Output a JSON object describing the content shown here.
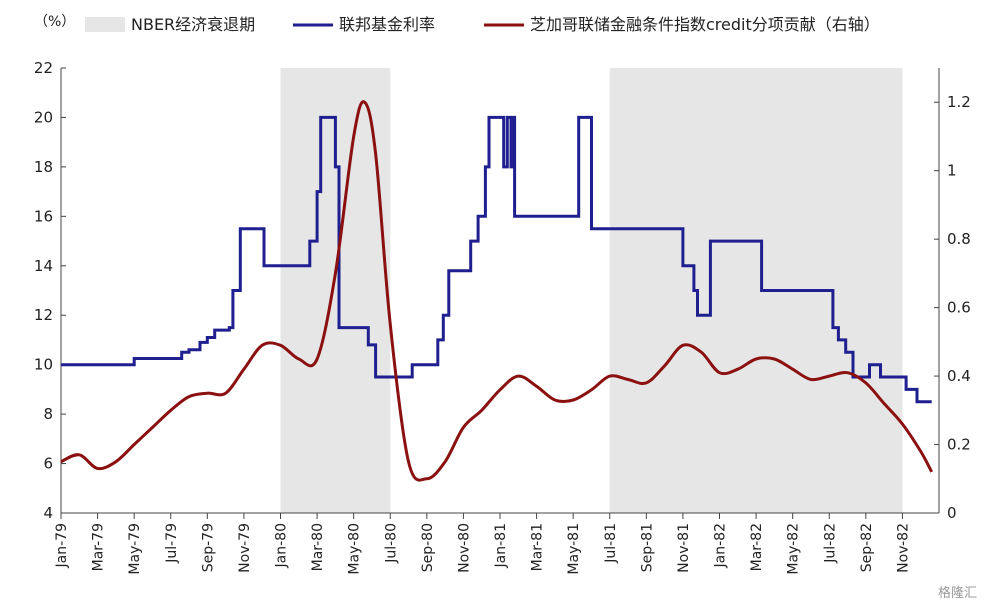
{
  "chart_data": {
    "type": "line",
    "unit_label": "（%）",
    "legend": [
      {
        "key": "recession",
        "label": "NBER经济衰退期",
        "color": "#e6e6e6"
      },
      {
        "key": "fed",
        "label": "联邦基金利率",
        "color": "#1f1f8f"
      },
      {
        "key": "credit",
        "label": "芝加哥联储金融条件指数credit分项贡献（右轴）",
        "color": "#8b1010"
      }
    ],
    "x_tick_labels": [
      "Jan-79",
      "Mar-79",
      "May-79",
      "Jul-79",
      "Sep-79",
      "Nov-79",
      "Jan-80",
      "Mar-80",
      "May-80",
      "Jul-80",
      "Sep-80",
      "Nov-80",
      "Jan-81",
      "Mar-81",
      "May-81",
      "Jul-81",
      "Sep-81",
      "Nov-81",
      "Jan-82",
      "Mar-82",
      "May-82",
      "Jul-82",
      "Sep-82",
      "Nov-82"
    ],
    "x_range_months": [
      0,
      48
    ],
    "y_left": {
      "min": 4,
      "max": 22,
      "ticks": [
        4,
        6,
        8,
        10,
        12,
        14,
        16,
        18,
        20,
        22
      ]
    },
    "y_right": {
      "min": 0,
      "max": 1.3,
      "ticks": [
        "0",
        "0.2",
        "0.4",
        "0.6",
        "0.8",
        "1",
        "1.2"
      ]
    },
    "recessions": [
      {
        "start": "Jan-80",
        "end": "Jul-80"
      },
      {
        "start": "Jul-81",
        "end": "Nov-82"
      }
    ],
    "series": [
      {
        "name": "联邦基金利率",
        "axis": "left",
        "step": true,
        "points": [
          [
            0.0,
            10.0
          ],
          [
            4.0,
            10.0
          ],
          [
            4.0,
            10.25
          ],
          [
            6.6,
            10.25
          ],
          [
            6.6,
            10.5
          ],
          [
            7.0,
            10.5
          ],
          [
            7.0,
            10.6
          ],
          [
            7.6,
            10.6
          ],
          [
            7.6,
            10.9
          ],
          [
            8.0,
            10.9
          ],
          [
            8.0,
            11.1
          ],
          [
            8.4,
            11.1
          ],
          [
            8.4,
            11.4
          ],
          [
            9.2,
            11.4
          ],
          [
            9.2,
            11.5
          ],
          [
            9.4,
            11.5
          ],
          [
            9.4,
            13.0
          ],
          [
            9.8,
            13.0
          ],
          [
            9.8,
            15.5
          ],
          [
            11.1,
            15.5
          ],
          [
            11.1,
            14.0
          ],
          [
            13.6,
            14.0
          ],
          [
            13.6,
            15.0
          ],
          [
            14.0,
            15.0
          ],
          [
            14.0,
            17.0
          ],
          [
            14.2,
            17.0
          ],
          [
            14.2,
            20.0
          ],
          [
            15.0,
            20.0
          ],
          [
            15.0,
            18.0
          ],
          [
            15.2,
            18.0
          ],
          [
            15.2,
            11.5
          ],
          [
            16.8,
            11.5
          ],
          [
            16.8,
            10.8
          ],
          [
            17.2,
            10.8
          ],
          [
            17.2,
            9.5
          ],
          [
            19.2,
            9.5
          ],
          [
            19.2,
            10.0
          ],
          [
            20.6,
            10.0
          ],
          [
            20.6,
            11.0
          ],
          [
            20.9,
            11.0
          ],
          [
            20.9,
            12.0
          ],
          [
            21.2,
            12.0
          ],
          [
            21.2,
            13.8
          ],
          [
            22.4,
            13.8
          ],
          [
            22.4,
            15.0
          ],
          [
            22.8,
            15.0
          ],
          [
            22.8,
            16.0
          ],
          [
            23.2,
            16.0
          ],
          [
            23.2,
            18.0
          ],
          [
            23.4,
            18.0
          ],
          [
            23.4,
            20.0
          ],
          [
            24.2,
            20.0
          ],
          [
            24.2,
            18.0
          ],
          [
            24.4,
            18.0
          ],
          [
            24.4,
            20.0
          ],
          [
            24.6,
            20.0
          ],
          [
            24.6,
            18.0
          ],
          [
            24.7,
            18.0
          ],
          [
            24.7,
            20.0
          ],
          [
            24.8,
            20.0
          ],
          [
            24.8,
            16.0
          ],
          [
            28.3,
            16.0
          ],
          [
            28.3,
            20.0
          ],
          [
            29.0,
            20.0
          ],
          [
            29.0,
            15.5
          ],
          [
            34.0,
            15.5
          ],
          [
            34.0,
            14.0
          ],
          [
            34.6,
            14.0
          ],
          [
            34.6,
            13.0
          ],
          [
            34.8,
            13.0
          ],
          [
            34.8,
            12.0
          ],
          [
            35.5,
            12.0
          ],
          [
            35.5,
            15.0
          ],
          [
            38.3,
            15.0
          ],
          [
            38.3,
            13.0
          ],
          [
            42.2,
            13.0
          ],
          [
            42.2,
            11.5
          ],
          [
            42.5,
            11.5
          ],
          [
            42.5,
            11.0
          ],
          [
            42.9,
            11.0
          ],
          [
            42.9,
            10.5
          ],
          [
            43.3,
            10.5
          ],
          [
            43.3,
            9.5
          ],
          [
            44.2,
            9.5
          ],
          [
            44.2,
            10.0
          ],
          [
            44.8,
            10.0
          ],
          [
            44.8,
            9.5
          ],
          [
            46.2,
            9.5
          ],
          [
            46.2,
            9.0
          ],
          [
            46.8,
            9.0
          ],
          [
            46.8,
            8.5
          ],
          [
            47.6,
            8.5
          ]
        ]
      },
      {
        "name": "芝加哥联储金融条件指数credit分项贡献（右轴）",
        "axis": "right",
        "step": false,
        "points": [
          [
            0.0,
            0.15
          ],
          [
            1.0,
            0.17
          ],
          [
            2.0,
            0.13
          ],
          [
            3.0,
            0.15
          ],
          [
            4.0,
            0.2
          ],
          [
            5.0,
            0.25
          ],
          [
            6.0,
            0.3
          ],
          [
            7.0,
            0.34
          ],
          [
            8.0,
            0.35
          ],
          [
            9.0,
            0.35
          ],
          [
            10.0,
            0.42
          ],
          [
            11.0,
            0.49
          ],
          [
            12.0,
            0.49
          ],
          [
            13.0,
            0.45
          ],
          [
            14.0,
            0.45
          ],
          [
            15.0,
            0.7
          ],
          [
            16.0,
            1.1
          ],
          [
            16.6,
            1.2
          ],
          [
            17.2,
            1.05
          ],
          [
            18.0,
            0.55
          ],
          [
            19.0,
            0.15
          ],
          [
            20.0,
            0.1
          ],
          [
            21.0,
            0.15
          ],
          [
            22.0,
            0.25
          ],
          [
            23.0,
            0.3
          ],
          [
            24.0,
            0.36
          ],
          [
            25.0,
            0.4
          ],
          [
            26.0,
            0.37
          ],
          [
            27.0,
            0.33
          ],
          [
            28.0,
            0.33
          ],
          [
            29.0,
            0.36
          ],
          [
            30.0,
            0.4
          ],
          [
            31.0,
            0.39
          ],
          [
            32.0,
            0.38
          ],
          [
            33.0,
            0.43
          ],
          [
            34.0,
            0.49
          ],
          [
            35.0,
            0.47
          ],
          [
            36.0,
            0.41
          ],
          [
            37.0,
            0.42
          ],
          [
            38.0,
            0.45
          ],
          [
            39.0,
            0.45
          ],
          [
            40.0,
            0.42
          ],
          [
            41.0,
            0.39
          ],
          [
            42.0,
            0.4
          ],
          [
            43.0,
            0.41
          ],
          [
            44.0,
            0.38
          ],
          [
            45.0,
            0.32
          ],
          [
            46.0,
            0.26
          ],
          [
            47.0,
            0.18
          ],
          [
            47.6,
            0.12
          ]
        ]
      }
    ]
  },
  "watermark": "格隆汇"
}
